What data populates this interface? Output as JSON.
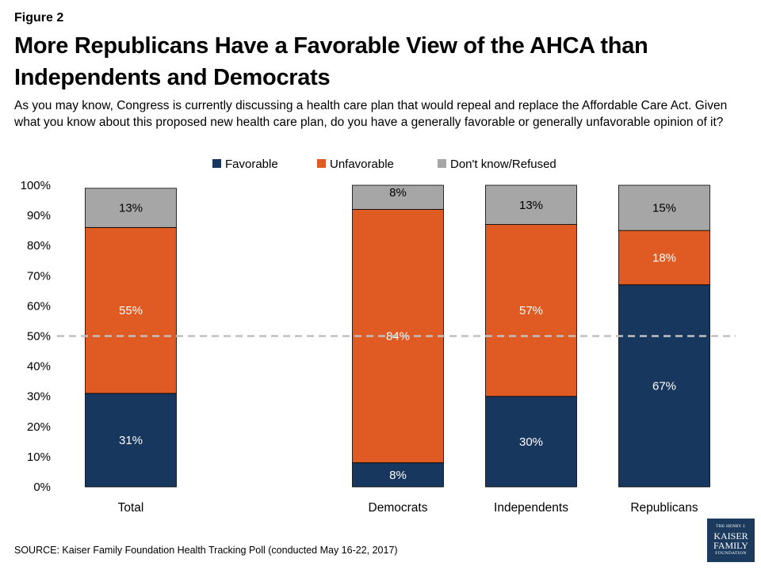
{
  "figure_label": "Figure 2",
  "title": "More Republicans Have a Favorable View of the AHCA than Independents and Democrats",
  "subtitle": "As you may know, Congress is currently discussing a health care plan that would repeal and replace the Affordable Care Act. Given what you know about this proposed new health care plan, do you have a generally favorable or generally unfavorable opinion of it?",
  "source": "SOURCE: Kaiser Family Foundation Health Tracking Poll (conducted May 16-22, 2017)",
  "logo": {
    "line1": "THE HENRY J.",
    "line2": "KAISER",
    "line3": "FAMILY",
    "line4": "FOUNDATION"
  },
  "colors": {
    "favorable": "#17375e",
    "unfavorable": "#e05a24",
    "dont_know": "#a6a6a6",
    "reference_line": "#c0c0c0"
  },
  "chart_data": {
    "type": "bar",
    "stacked": true,
    "categories": [
      "Total",
      "Democrats",
      "Independents",
      "Republicans"
    ],
    "series": [
      {
        "name": "Favorable",
        "values": [
          31,
          8,
          30,
          67
        ],
        "labels": [
          "31%",
          "8%",
          "30%",
          "67%"
        ]
      },
      {
        "name": "Unfavorable",
        "values": [
          55,
          84,
          57,
          18
        ],
        "labels": [
          "55%",
          "84%",
          "57%",
          "18%"
        ]
      },
      {
        "name": "Don't know/Refused",
        "values": [
          13,
          8,
          13,
          15
        ],
        "labels": [
          "13%",
          "8%",
          "13%",
          "15%"
        ]
      }
    ],
    "yticks": [
      "0%",
      "10%",
      "20%",
      "30%",
      "40%",
      "50%",
      "60%",
      "70%",
      "80%",
      "90%",
      "100%"
    ],
    "ylim": [
      0,
      100
    ],
    "reference_line": 50,
    "legend_position": "top-center",
    "grid": false
  }
}
